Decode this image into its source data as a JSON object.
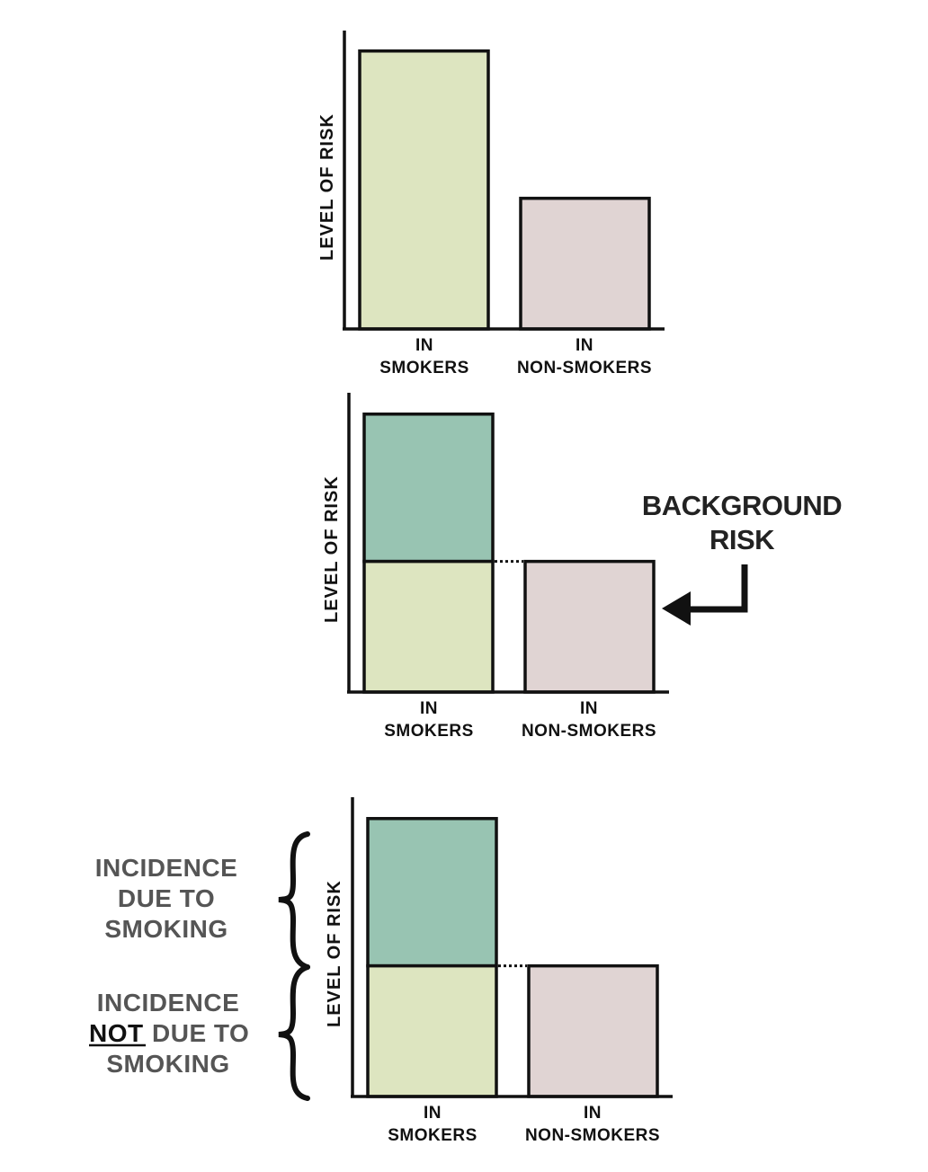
{
  "chart_data": [
    {
      "type": "bar",
      "ylabel": "LEVEL OF RISK",
      "categories": [
        [
          "IN",
          "SMOKERS"
        ],
        [
          "IN",
          "NON-SMOKERS"
        ]
      ],
      "values": [
        1.0,
        0.47
      ],
      "stacked": false,
      "ylim": [
        0,
        1.08
      ],
      "colors": {
        "smokers": "#dde5c0",
        "non_smokers": "#e0d4d3"
      }
    },
    {
      "type": "bar",
      "ylabel": "LEVEL OF RISK",
      "categories": [
        [
          "IN",
          "SMOKERS"
        ],
        [
          "IN",
          "NON-SMOKERS"
        ]
      ],
      "values": [
        1.0,
        0.47
      ],
      "stacked": true,
      "split_at": 0.47,
      "annotation": {
        "text": [
          "BACKGROUND",
          "RISK"
        ]
      },
      "colors": {
        "smokers_lower": "#dde5c0",
        "smokers_upper": "#98c4b2",
        "non_smokers": "#e0d4d3"
      },
      "ylim": [
        0,
        1.08
      ]
    },
    {
      "type": "bar",
      "ylabel": "LEVEL OF RISK",
      "categories": [
        [
          "IN",
          "SMOKERS"
        ],
        [
          "IN",
          "NON-SMOKERS"
        ]
      ],
      "values": [
        1.0,
        0.47
      ],
      "stacked": true,
      "split_at": 0.47,
      "brace_labels": {
        "upper": [
          "INCIDENCE",
          "DUE TO",
          "SMOKING"
        ],
        "lower_first": "INCIDENCE",
        "lower_not": "NOT",
        "lower_rest": "DUE TO",
        "lower_last": "SMOKING"
      },
      "colors": {
        "smokers_lower": "#dde5c0",
        "smokers_upper": "#98c4b2",
        "non_smokers": "#e0d4d3"
      },
      "ylim": [
        0,
        1.08
      ]
    }
  ]
}
